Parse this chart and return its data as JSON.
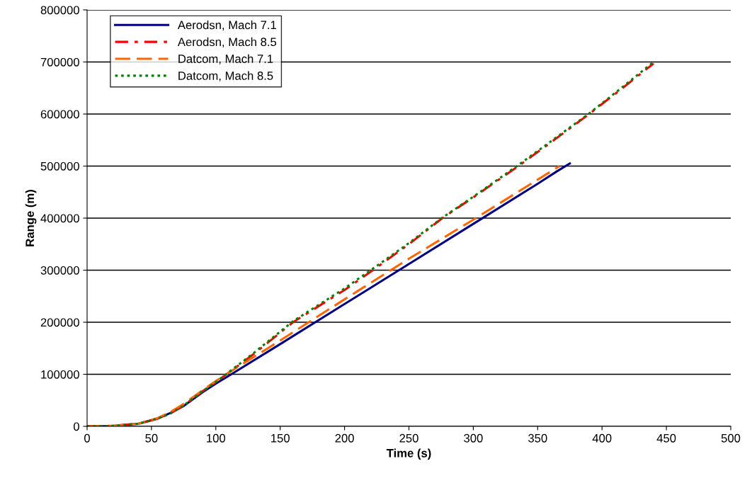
{
  "chart_data": {
    "type": "line",
    "xlabel": "Time (s)",
    "ylabel": "Range (m)",
    "xlim": [
      0,
      500
    ],
    "xticks": [
      0,
      50,
      100,
      150,
      200,
      250,
      300,
      350,
      400,
      450,
      500
    ],
    "ylim": [
      0,
      800000
    ],
    "yticks": [
      0,
      100000,
      200000,
      300000,
      400000,
      500000,
      600000,
      700000,
      800000
    ],
    "grid": "y",
    "legend": "top left",
    "marker": "none",
    "series": [
      {
        "name": "Aerodsn, Mach 7.1",
        "color": "#000080",
        "line_style": "solid",
        "x": [
          0,
          20,
          40,
          55,
          65,
          75,
          90,
          100,
          112,
          150,
          200,
          250,
          300,
          350,
          365,
          375
        ],
        "values": [
          0,
          800,
          5000,
          15000,
          26000,
          39000,
          66000,
          82000,
          100000,
          158000,
          235000,
          312000,
          389000,
          466000,
          490000,
          505000
        ]
      },
      {
        "name": "Aerodsn, Mach 8.5",
        "color": "#ff0000",
        "line_style": "dashdot",
        "x": [
          0,
          20,
          40,
          55,
          65,
          75,
          90,
          100,
          110,
          130,
          160,
          200,
          222,
          250,
          276,
          300,
          335,
          360,
          390,
          415,
          440
        ],
        "values": [
          0,
          1000,
          5000,
          15000,
          25000,
          40000,
          68000,
          85000,
          103000,
          140000,
          200000,
          262000,
          300000,
          350000,
          400000,
          440000,
          500000,
          545000,
          600000,
          648000,
          697000
        ]
      },
      {
        "name": "Datcom, Mach 7.1",
        "color": "#ff6600",
        "line_style": "dashed",
        "x": [
          0,
          20,
          40,
          55,
          65,
          75,
          90,
          100,
          110,
          150,
          200,
          250,
          300,
          350,
          367
        ],
        "values": [
          0,
          1000,
          5000,
          16000,
          28000,
          43000,
          70000,
          87000,
          103000,
          165000,
          244000,
          322000,
          397000,
          474000,
          500000
        ]
      },
      {
        "name": "Datcom, Mach 8.5",
        "color": "#008000",
        "line_style": "dotted",
        "x": [
          0,
          20,
          40,
          55,
          65,
          75,
          90,
          100,
          110,
          130,
          160,
          200,
          222,
          250,
          276,
          300,
          335,
          360,
          390,
          415,
          440
        ],
        "values": [
          0,
          1000,
          5000,
          15000,
          25000,
          40000,
          68000,
          85000,
          104000,
          142000,
          202000,
          265000,
          303000,
          352000,
          401000,
          441000,
          502000,
          547000,
          601000,
          650000,
          700000
        ]
      }
    ]
  }
}
